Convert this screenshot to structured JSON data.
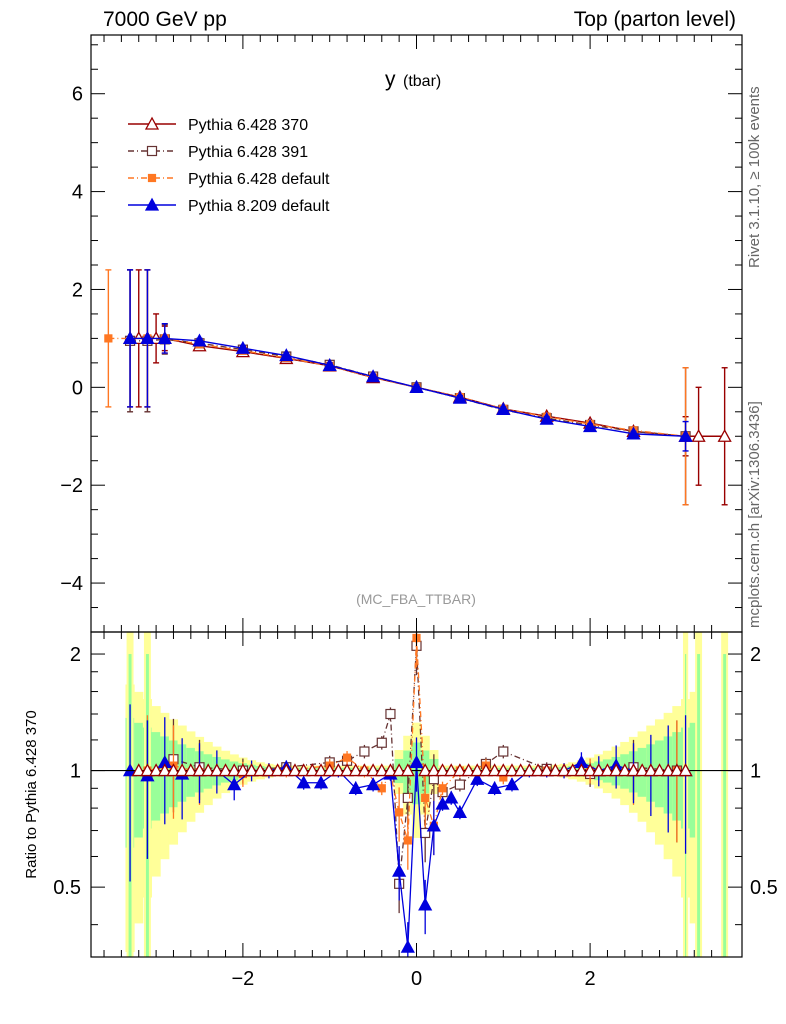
{
  "header": {
    "left": "7000 GeV pp",
    "right": "Top (parton level)"
  },
  "side_text": {
    "rivet": "Rivet 3.1.10, ≥ 100k events",
    "mcplots": "mcplots.cern.ch [arXiv:1306.3436]"
  },
  "colors": {
    "p370": "#990000",
    "p391": "#663333",
    "pdef": "#ff7722",
    "p8": "#0000dd",
    "band_green": "#99ff99",
    "band_yellow": "#ffff99"
  },
  "chart_data": {
    "type": "line",
    "title": "y",
    "title_sub": "(tbar)",
    "analysis": "(MC_FBA_TTBAR)",
    "xlabel": "",
    "ylabel": "",
    "xlim": [
      -3.75,
      3.75
    ],
    "ylim": [
      -5,
      7.2
    ],
    "x_ticks": [
      -2,
      0,
      2
    ],
    "x_tick_labels": [
      "−2",
      "0",
      "2"
    ],
    "y_ticks": [
      -4,
      -2,
      0,
      2,
      4,
      6
    ],
    "y_tick_labels": [
      "−4",
      "−2",
      "0",
      "2",
      "4",
      "6"
    ],
    "series": [
      {
        "name": "Pythia 6.428 370",
        "marker": "triangle-open",
        "style": "solid",
        "x": [
          -3.3,
          -3.2,
          -3.1,
          -3.0,
          -2.9,
          -2.5,
          -2.0,
          -1.5,
          -1.0,
          -0.5,
          0.0,
          0.5,
          1.0,
          1.5,
          2.0,
          2.5,
          3.1,
          3.25,
          3.55
        ],
        "y": [
          1.0,
          1.0,
          1.0,
          1.0,
          1.0,
          0.85,
          0.73,
          0.59,
          0.44,
          0.2,
          0.0,
          -0.2,
          -0.44,
          -0.59,
          -0.73,
          -0.9,
          -1.0,
          -1.0,
          -1.0
        ],
        "err": [
          1.4,
          1.4,
          1.4,
          0.5,
          0.25,
          0.05,
          0.05,
          0.05,
          0.05,
          0.05,
          0.05,
          0.05,
          0.05,
          0.05,
          0.05,
          0.05,
          0.4,
          1.0,
          1.4
        ]
      },
      {
        "name": "Pythia 6.428 391",
        "marker": "square-open",
        "style": "dashdot",
        "x": [
          -3.3,
          -3.1,
          -2.9,
          -2.5,
          -2.0,
          -1.5,
          -1.0,
          -0.5,
          0.0,
          0.5,
          1.0,
          1.5,
          2.0,
          2.5,
          3.1
        ],
        "y": [
          0.95,
          0.95,
          0.98,
          0.9,
          0.77,
          0.63,
          0.46,
          0.22,
          0.0,
          -0.22,
          -0.46,
          -0.63,
          -0.77,
          -0.9,
          -1.0
        ],
        "err": [
          1.45,
          1.45,
          0.3,
          0.05,
          0.05,
          0.05,
          0.05,
          0.05,
          0.05,
          0.05,
          0.05,
          0.05,
          0.05,
          0.05,
          1.4
        ]
      },
      {
        "name": "Pythia 6.428 default",
        "marker": "square-filled",
        "style": "dashdot",
        "x": [
          -3.55,
          -3.1,
          -2.9,
          -2.5,
          -2.0,
          -1.5,
          -1.0,
          -0.5,
          0.0,
          0.5,
          1.0,
          1.5,
          2.0,
          2.5,
          3.1
        ],
        "y": [
          1.0,
          1.0,
          1.0,
          0.88,
          0.75,
          0.6,
          0.44,
          0.2,
          0.0,
          -0.2,
          -0.44,
          -0.6,
          -0.75,
          -0.88,
          -1.0
        ],
        "err": [
          1.4,
          1.4,
          0.3,
          0.05,
          0.05,
          0.05,
          0.05,
          0.05,
          0.05,
          0.05,
          0.05,
          0.05,
          0.05,
          0.05,
          1.4
        ]
      },
      {
        "name": "Pythia 8.209 default",
        "marker": "triangle-filled",
        "style": "solid",
        "x": [
          -3.3,
          -3.1,
          -2.9,
          -2.5,
          -2.0,
          -1.5,
          -1.0,
          -0.5,
          0.0,
          0.5,
          1.0,
          1.5,
          2.0,
          2.5,
          3.1
        ],
        "y": [
          1.0,
          1.0,
          1.0,
          0.95,
          0.8,
          0.65,
          0.45,
          0.22,
          0.0,
          -0.22,
          -0.45,
          -0.65,
          -0.8,
          -0.95,
          -1.0
        ],
        "err": [
          1.4,
          1.4,
          0.3,
          0.05,
          0.05,
          0.05,
          0.05,
          0.05,
          0.05,
          0.05,
          0.05,
          0.05,
          0.05,
          0.05,
          0.3
        ]
      }
    ],
    "ratio": {
      "ylabel": "Ratio to Pythia 6.428 370",
      "ylim": [
        0.33,
        2.28
      ],
      "y_ticks": [
        0.5,
        1,
        2
      ],
      "y_tick_labels": [
        "0.5",
        "1",
        "2"
      ],
      "series": [
        {
          "name": "Pythia 6.428 391",
          "x": [
            -3.1,
            -2.8,
            -2.5,
            -2.0,
            -1.5,
            -1.0,
            -0.8,
            -0.6,
            -0.4,
            -0.3,
            -0.2,
            -0.1,
            0.0,
            0.1,
            0.2,
            0.3,
            0.5,
            0.8,
            1.0,
            1.5,
            2.0,
            2.5,
            3.0
          ],
          "y": [
            0.97,
            1.07,
            1.02,
            1.0,
            1.02,
            1.05,
            1.06,
            1.12,
            1.18,
            1.4,
            0.51,
            0.85,
            2.1,
            0.69,
            0.95,
            0.88,
            0.92,
            1.04,
            1.12,
            1.01,
            0.98,
            1.02,
            1.0
          ]
        },
        {
          "name": "Pythia 6.428 default",
          "x": [
            -3.1,
            -2.8,
            -2.5,
            -2.0,
            -1.5,
            -1.0,
            -0.8,
            -0.6,
            -0.4,
            -0.3,
            -0.2,
            -0.1,
            0.0,
            0.1,
            0.2,
            0.3,
            0.5,
            0.8,
            1.0,
            1.5,
            2.0,
            2.5,
            3.0
          ],
          "y": [
            1.0,
            1.03,
            0.99,
            0.98,
            1.0,
            1.03,
            1.08,
            1.0,
            0.9,
            0.98,
            0.78,
            0.66,
            2.2,
            0.85,
            0.72,
            0.9,
            1.0,
            1.03,
            0.96,
            1.0,
            1.0,
            0.99,
            1.0
          ]
        },
        {
          "name": "Pythia 8.209 default",
          "x": [
            -3.3,
            -3.1,
            -2.9,
            -2.7,
            -2.5,
            -2.3,
            -2.1,
            -1.9,
            -1.7,
            -1.5,
            -1.3,
            -1.1,
            -0.9,
            -0.7,
            -0.5,
            -0.3,
            -0.2,
            -0.1,
            0.0,
            0.1,
            0.2,
            0.3,
            0.4,
            0.5,
            0.7,
            0.9,
            1.1,
            1.3,
            1.5,
            1.7,
            1.9,
            2.1,
            2.3,
            2.5,
            2.7,
            2.9,
            3.1
          ],
          "y": [
            1.0,
            0.97,
            1.05,
            0.98,
            1.0,
            1.0,
            0.92,
            1.0,
            1.0,
            1.02,
            0.93,
            0.93,
            1.0,
            0.9,
            0.92,
            0.98,
            0.55,
            0.35,
            1.05,
            0.45,
            0.72,
            0.82,
            0.85,
            0.78,
            0.95,
            0.9,
            0.92,
            1.0,
            1.0,
            1.0,
            1.05,
            1.0,
            1.03,
            1.0,
            1.0,
            1.0,
            1.0
          ]
        }
      ]
    }
  }
}
